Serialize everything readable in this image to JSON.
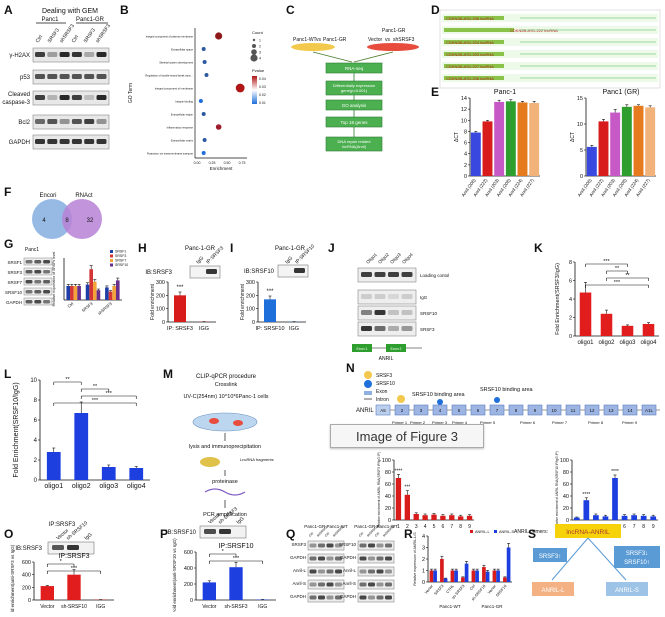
{
  "caption": "Image of Figure 3",
  "panels": {
    "A": {
      "letter": "A",
      "title": "Dealing with GEM",
      "cols": [
        "Ctrl",
        "SRSF3",
        "shSRSF3",
        "Ctrl",
        "SRSF3",
        "shSRSF3"
      ],
      "groups": [
        "Panc1",
        "Panc1-GR"
      ],
      "rows": [
        "γ-H2AX",
        "p53",
        "Cleaved caspase-3",
        "Bcl2",
        "GAPDH"
      ]
    },
    "B": {
      "letter": "B",
      "ylabel": "GO Term",
      "xlabel": "Enrichment",
      "legend_title": "Count",
      "legend2_title": "Pvalue"
    },
    "C": {
      "letter": "C",
      "top_left": "Panc1-WT",
      "vs1": "vs",
      "top_mid": "Panc1-GR",
      "top_right": "Panc1-GR",
      "vector": "Vector",
      "vs2": "vs",
      "shsrsf3": "shSRSF3",
      "steps": [
        "RNA-seq",
        "Differentially expression gene(p<0.001)",
        "GO analysis",
        "Top 18 genes",
        "DNA repair related lncRNA(Anril)"
      ]
    },
    "D": {
      "letter": "D",
      "tracks": [
        "CDKN2B-AS1-208 lncRNA",
        "CDKN2B-AS1-222 lncRNA",
        "CDKN2B-AS1-224 lncRNA",
        "CDKN2B-AS1-203 lncRNA",
        "CDKN2B-AS1-227 lncRNA",
        "CDKN2B-AS1-206 lncRNA"
      ]
    },
    "E": {
      "letter": "E"
    },
    "F": {
      "letter": "F",
      "left": "Encori",
      "right": "RNAct",
      "n_left": "4",
      "n_mid": "8",
      "n_right": "32"
    },
    "G": {
      "letter": "G",
      "group": "Panc1",
      "rows": [
        "SRSF1",
        "SRSF3",
        "SRSF7",
        "SRSF10",
        "GAPDH"
      ],
      "ylabel": "Relative expression of SRSFs level"
    },
    "H": {
      "letter": "H",
      "title": "Panc-1-GR",
      "ib": "IB:SRSF3",
      "lanes": [
        "IgG",
        "IP:SRSF3"
      ]
    },
    "I": {
      "letter": "I",
      "title": "Panc-1-GR",
      "ib": "IB:SRSF10",
      "lanes": [
        "IgG",
        "IP:SRSF10"
      ]
    },
    "J": {
      "letter": "J",
      "cols": [
        "Oligo1",
        "Oligo2",
        "Oligo3",
        "Oligo4"
      ],
      "rows": [
        "Loading contol",
        "IgG",
        "SRSF10",
        "SRSF3"
      ],
      "boxes": [
        "Exon 1",
        "Exon 2"
      ],
      "gene": "ANRIL"
    },
    "K": {
      "letter": "K"
    },
    "L": {
      "letter": "L"
    },
    "M": {
      "letter": "M",
      "title": "CLIP-qPCR procedure",
      "sub1": "Crosslink",
      "sub2": "UV-C(254nm) 10^10*6Panc-1 cells",
      "step1": "lysis and immunoprecipitation",
      "note": "LncRNA fragments",
      "step2": "proteinase",
      "step3": "PCR amplification"
    },
    "N": {
      "letter": "N",
      "legend": [
        "SRSF3",
        "SRSF10",
        "Exon",
        "Intron"
      ],
      "gene": "ANRIL",
      "area3": "SRSF3 binding area",
      "area10a": "SRSF10 binding area",
      "area10b": "SRSF10 binding area",
      "area3b": "SRSF3 binding area",
      "exons": [
        "A5",
        "2",
        "3",
        "4",
        "5",
        "6",
        "7",
        "8",
        "9",
        "10",
        "11",
        "12",
        "13",
        "14",
        "A1L"
      ],
      "primers": [
        "Primer 1",
        "Primer 2",
        "Primer 3",
        "Primer 4",
        "Primer 5",
        "Primer 6",
        "Primer 7",
        "Primer 8",
        "Primer 9"
      ],
      "ylabel_left": "Relative enrichment of ANRIL RNA(SRSF3 IP/IgG IP)",
      "ylabel_right": "Relative enrichment of ANRIL RNA(SRSF10 IP/IgG IP)",
      "primer_axis": "ANRIL primers:"
    },
    "O": {
      "letter": "O",
      "title": "IP:SRSF3",
      "ib": "IB:SRSF3",
      "lanes": [
        "Vector",
        "sh-SRSF10",
        "IgG"
      ],
      "chart_title": "IP:SRSF3"
    },
    "P": {
      "letter": "P",
      "ib": "IB:SRSF10",
      "lanes": [
        "Vector",
        "sh-SRSF3",
        "IgG"
      ],
      "chart_title": "IP:SRSF10"
    },
    "Q": {
      "letter": "Q",
      "left_group": "Panc1-GR Panc1-WT",
      "right_group": "Panc1-GR Panc1-WT",
      "left_cols": [
        "Ctrl",
        "shSRSF3",
        "Ctrl",
        "shSRSF3"
      ],
      "right_cols": [
        "Ctrl",
        "shSRSF10",
        "Ctrl",
        "shSRSF10"
      ],
      "left_rows": [
        "SRSF3",
        "GAPDH",
        "Anril-L",
        "Anril-S",
        "GAPDH"
      ],
      "right_rows": [
        "SRSF10",
        "GAPDH",
        "Anril-L",
        "Anril-S",
        "GAPDH"
      ]
    },
    "R": {
      "letter": "R",
      "legend": [
        "ANRIL-L",
        "ANRIL-S"
      ],
      "groups": [
        "Panc1-WT",
        "Panc1-GR"
      ]
    },
    "S": {
      "letter": "S",
      "top": "lncRNA-ANRIL",
      "left_cond": "SRSF3↑",
      "right_cond": "SRSF3↓ SRSF10↑",
      "left_out": "ANRIL-L",
      "right_out": "ANRIL-S"
    }
  },
  "chart_data": [
    {
      "id": "B",
      "type": "scatter",
      "xlabel": "Enrichment",
      "ylabel": "GO Term",
      "categories": [
        "Integral component of plasma membrane",
        "Extracellular space",
        "Skeletal system development",
        "Regulation of double-strand break repair via nonhomologous end joining",
        "Integral component of membrane",
        "Integrin binding",
        "Extracellular region",
        "Inflammatory response",
        "Extracellular matrix",
        "Potassium ion transmembrane transport"
      ],
      "x": [
        0.42,
        0.1,
        0.12,
        0.16,
        0.88,
        0.04,
        0.1,
        0.42,
        0.12,
        0.1
      ],
      "count": [
        3,
        1,
        1,
        1,
        4,
        1,
        1,
        2,
        1,
        1
      ],
      "pvalue_color": [
        "#8e1a1a",
        "#2c5aa0",
        "#2c5aa0",
        "#2c5aa0",
        "#b01616",
        "#1e6fd9",
        "#2c5aa0",
        "#9e1d2d",
        "#2c5aa0",
        "#1e6fd9"
      ],
      "xticks": [
        "0.00",
        "0.25",
        "0.50",
        "0.75"
      ],
      "legend_counts": [
        "1",
        "2",
        "3",
        "4"
      ],
      "legend_p": [
        "0.04",
        "0.03",
        "0.02",
        "0.01"
      ]
    },
    {
      "id": "E1",
      "type": "bar",
      "title": "Panc-1",
      "ylabel": "ΔCT",
      "ylim": [
        0,
        14
      ],
      "yticks": [
        "0",
        "2",
        "4",
        "6",
        "8",
        "10",
        "12",
        "14"
      ],
      "categories": [
        "Anril (206)",
        "Anril (222)",
        "Anril (203)",
        "Anril (208)",
        "Anril (224)",
        "Anril (227)"
      ],
      "values": [
        7.8,
        9.8,
        13.3,
        13.4,
        13.2,
        13.1
      ],
      "errors": [
        0.2,
        0.2,
        0.3,
        0.3,
        0.2,
        0.3
      ],
      "colors": [
        "#3949e0",
        "#d81b1b",
        "#c659c6",
        "#2e9e2e",
        "#e67a1e",
        "#f2b37a"
      ]
    },
    {
      "id": "E2",
      "type": "bar",
      "title": "Panc1 (GR)",
      "ylabel": "ΔCT",
      "ylim": [
        0,
        15
      ],
      "yticks": [
        "0",
        "5",
        "10",
        "15"
      ],
      "categories": [
        "Anril (206)",
        "Anril (222)",
        "Anril (203)",
        "Anril (208)",
        "Anril (224)",
        "Anril (227)"
      ],
      "values": [
        5.6,
        10.5,
        12.2,
        13.3,
        13.5,
        13.2
      ],
      "errors": [
        0.3,
        0.4,
        0.6,
        0.4,
        0.2,
        0.3
      ],
      "colors": [
        "#3949e0",
        "#d81b1b",
        "#c659c6",
        "#2e9e2e",
        "#e67a1e",
        "#f2b37a"
      ]
    },
    {
      "id": "G",
      "type": "bar",
      "ylabel": "Relative expression of SRSFs level",
      "categories": [
        "Ctrl",
        "SRSF3",
        "shSRSF3"
      ],
      "series": [
        {
          "name": "SRSF1",
          "values": [
            1.0,
            1.1,
            0.9
          ]
        },
        {
          "name": "SRSF3",
          "values": [
            1.0,
            2.2,
            0.6
          ]
        },
        {
          "name": "SRSF7",
          "values": [
            1.0,
            1.3,
            1.0
          ]
        },
        {
          "name": "SRSF10",
          "values": [
            1.0,
            0.7,
            1.4
          ]
        }
      ],
      "ylim": [
        0,
        3
      ],
      "colors": [
        "#1f3ea8",
        "#d43535",
        "#f2a33a",
        "#6a2e8c"
      ]
    },
    {
      "id": "H",
      "type": "bar",
      "ylabel": "Fold enrichment",
      "categories": [
        "IP: SRSF3",
        "IGG"
      ],
      "values": [
        200,
        2
      ],
      "errors": [
        25,
        1
      ],
      "ylim": [
        0,
        300
      ],
      "yticks": [
        "0",
        "100",
        "200",
        "300"
      ],
      "significance": "***",
      "colors": [
        "#d81b1b",
        "#d81b1b"
      ]
    },
    {
      "id": "I",
      "type": "bar",
      "ylabel": "Fold enrichment",
      "categories": [
        "IP: SRSF10",
        "IGG"
      ],
      "values": [
        170,
        2
      ],
      "errors": [
        25,
        1
      ],
      "ylim": [
        0,
        300
      ],
      "yticks": [
        "0",
        "100",
        "200",
        "300"
      ],
      "significance": "***",
      "colors": [
        "#1e6fd9",
        "#1e6fd9"
      ]
    },
    {
      "id": "K",
      "type": "bar",
      "ylabel": "Fold Enrichment(SRSF3/IgG)",
      "categories": [
        "oligo1",
        "oligo2",
        "oligo3",
        "oligo4"
      ],
      "values": [
        4.7,
        2.4,
        1.1,
        1.3
      ],
      "errors": [
        1.1,
        0.4,
        0.1,
        0.15
      ],
      "ylim": [
        0,
        8
      ],
      "yticks": [
        "0",
        "2",
        "4",
        "6",
        "8"
      ],
      "colors": [
        "#e11d1d",
        "#e11d1d",
        "#e11d1d",
        "#e11d1d"
      ],
      "brackets": [
        {
          "from": 0,
          "to": 2,
          "label": "***"
        },
        {
          "from": 1,
          "to": 2,
          "label": "**"
        },
        {
          "from": 1,
          "to": 3,
          "label": "**"
        },
        {
          "from": 0,
          "to": 3,
          "label": "***"
        }
      ]
    },
    {
      "id": "L",
      "type": "bar",
      "ylabel": "Fold Enrichment(SRSF10/IgG)",
      "categories": [
        "oligo1",
        "oligo2",
        "oligo3",
        "oligo4"
      ],
      "values": [
        2.8,
        6.7,
        1.3,
        1.2
      ],
      "errors": [
        0.4,
        1.1,
        0.2,
        0.15
      ],
      "ylim": [
        0,
        10
      ],
      "yticks": [
        "0",
        "2",
        "4",
        "6",
        "8",
        "10"
      ],
      "colors": [
        "#1e3fe0",
        "#1e3fe0",
        "#1e3fe0",
        "#1e3fe0"
      ],
      "brackets": [
        {
          "from": 0,
          "to": 1,
          "label": "**"
        },
        {
          "from": 1,
          "to": 2,
          "label": "**"
        },
        {
          "from": 1,
          "to": 3,
          "label": "***"
        },
        {
          "from": 0,
          "to": 3,
          "label": "***"
        }
      ]
    },
    {
      "id": "N1",
      "type": "bar",
      "ylabel": "Relative enrichment of ANRIL RNA(SRSF3 IP/IgG IP)",
      "categories": [
        "1",
        "2",
        "3",
        "4",
        "5",
        "6",
        "7",
        "8",
        "9"
      ],
      "values": [
        70,
        42,
        10,
        8,
        9,
        7,
        8,
        6,
        7
      ],
      "errors": [
        6,
        7,
        2,
        2,
        2,
        2,
        2,
        2,
        2
      ],
      "ylim": [
        0,
        100
      ],
      "yticks": [
        "0",
        "20",
        "40",
        "60",
        "80",
        "100"
      ],
      "colors": [
        "#d81b1b"
      ],
      "sig": [
        "****",
        "***",
        "",
        "",
        "",
        "",
        "",
        "",
        ""
      ]
    },
    {
      "id": "N2",
      "type": "bar",
      "ylabel": "Relative enrichment of ANRIL RNA(SRSF10 IP/IgG IP)",
      "categories": [
        "1",
        "2",
        "3",
        "4",
        "5",
        "6",
        "7",
        "8",
        "9"
      ],
      "values": [
        4,
        33,
        8,
        6,
        70,
        7,
        8,
        7,
        6
      ],
      "errors": [
        1,
        4,
        2,
        2,
        5,
        2,
        2,
        2,
        2
      ],
      "ylim": [
        0,
        100
      ],
      "yticks": [
        "0",
        "20",
        "40",
        "60",
        "80",
        "100"
      ],
      "colors": [
        "#1e3fe0"
      ],
      "sig": [
        "",
        "****",
        "",
        "",
        "****",
        "",
        "",
        "",
        ""
      ]
    },
    {
      "id": "O",
      "type": "bar",
      "ylabel": "Fold enrichment(anti-SRSF3 vs IgG)",
      "title": "IP:SRSF3",
      "categories": [
        "Vector",
        "sh-SRSF10",
        "IGG"
      ],
      "values": [
        220,
        400,
        5
      ],
      "errors": [
        10,
        80,
        2
      ],
      "ylim": [
        0,
        600
      ],
      "yticks": [
        "0",
        "200",
        "400",
        "600"
      ],
      "colors": [
        "#e11d1d"
      ],
      "brackets": [
        {
          "from": 0,
          "to": 1,
          "label": "*"
        },
        {
          "from": 0,
          "to": 2,
          "label": "***"
        }
      ]
    },
    {
      "id": "P",
      "type": "bar",
      "ylabel": "Fold enrichment(anti-SRSF10 vs IgG)",
      "title": "IP:SRSF10",
      "categories": [
        "Vector",
        "sh-SRSF3",
        "IGG"
      ],
      "values": [
        220,
        410,
        5
      ],
      "errors": [
        20,
        60,
        2
      ],
      "ylim": [
        0,
        600
      ],
      "yticks": [
        "0",
        "200",
        "400",
        "600"
      ],
      "colors": [
        "#1e3fe0"
      ],
      "brackets": [
        {
          "from": 0,
          "to": 1,
          "label": "*"
        },
        {
          "from": 0,
          "to": 2,
          "label": "***"
        }
      ]
    },
    {
      "id": "R",
      "type": "bar",
      "ylabel": "Relative expression of ANRIL-L/S",
      "categories": [
        "Vector",
        "SRSF3",
        "CTRL",
        "sh-SRSF3",
        "Ctrl",
        "sh-SRSF10",
        "Vector",
        "SRSF10"
      ],
      "series": [
        {
          "name": "ANRIL-L",
          "values": [
            1.0,
            2.0,
            1.0,
            0.4,
            1.0,
            1.3,
            1.0,
            0.4
          ]
        },
        {
          "name": "ANRIL-S",
          "values": [
            1.0,
            0.3,
            1.0,
            1.6,
            1.0,
            0.9,
            1.0,
            3.0
          ]
        }
      ],
      "ylim": [
        0,
        4
      ],
      "yticks": [
        "0",
        "1",
        "2",
        "3",
        "4"
      ],
      "colors": [
        "#d81b1b",
        "#1e3fe0"
      ]
    }
  ]
}
